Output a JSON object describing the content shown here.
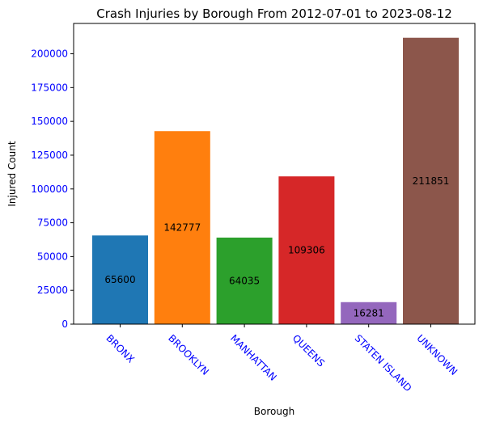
{
  "chart_data": {
    "type": "bar",
    "title": "Crash Injuries by Borough From 2012-07-01 to 2023-08-12",
    "xlabel": "Borough",
    "ylabel": "Injured Count",
    "categories": [
      "BRONX",
      "BROOKLYN",
      "MANHATTAN",
      "QUEENS",
      "STATEN ISLAND",
      "UNKNOWN"
    ],
    "values": [
      65600,
      142777,
      64035,
      109306,
      16281,
      211851
    ],
    "bar_labels": [
      "65600",
      "142777",
      "64035",
      "109306",
      "16281",
      "211851"
    ],
    "colors": [
      "#1f77b4",
      "#ff7f0e",
      "#2ca02c",
      "#d62728",
      "#9467bd",
      "#8c564b"
    ],
    "yticks": [
      0,
      25000,
      50000,
      75000,
      100000,
      125000,
      150000,
      175000,
      200000
    ],
    "ytick_labels": [
      "0",
      "25000",
      "50000",
      "75000",
      "100000",
      "125000",
      "150000",
      "175000",
      "200000"
    ],
    "ylim": [
      0,
      222443
    ],
    "tick_label_color": "#0000ff",
    "grid": false,
    "legend": "none"
  }
}
